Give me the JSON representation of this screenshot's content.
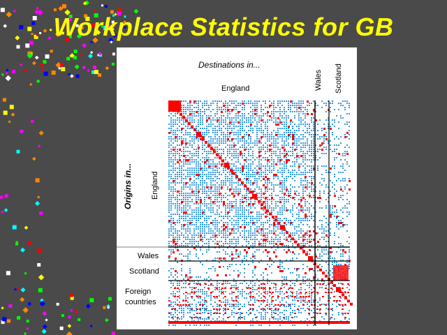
{
  "slide": {
    "title": "Workplace Statistics for GB",
    "colors": {
      "background": "#4a4a4a",
      "title": "#ffff00",
      "cell_low": "#3399dd",
      "cell_high": "#ff0000",
      "grid_line": "#000000"
    }
  },
  "matrix": {
    "destinations_title": "Destinations in...",
    "origins_title": "Origins in...",
    "column_labels": [
      "England",
      "Wales",
      "Scotland"
    ],
    "row_labels": [
      "England",
      "Wales",
      "Scotland",
      "Foreign countries"
    ],
    "legend_note": ""
  }
}
